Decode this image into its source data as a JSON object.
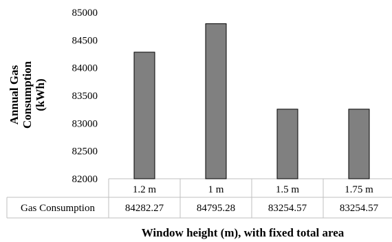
{
  "chart_data": {
    "type": "bar",
    "categories": [
      "1.2 m",
      "1 m",
      "1.5 m",
      "1.75 m"
    ],
    "series": [
      {
        "name": "Gas Consumption",
        "values": [
          84282.27,
          84795.28,
          83254.57,
          83254.57
        ]
      }
    ],
    "value_labels": [
      "84282.27",
      "84795.28",
      "83254.57",
      "83254.57"
    ],
    "ylabel": "Annual Gas Consumption (kWh)",
    "ylabel_lines": [
      "Annual Gas",
      "Consumption",
      "(kWh)"
    ],
    "xlabel": "Window height (m), with fixed total area",
    "ylim": [
      82000,
      85000
    ],
    "yticks": [
      82000,
      82500,
      83000,
      83500,
      84000,
      84500,
      85000
    ],
    "grid": false,
    "legend": "data-table",
    "bar_color": "#808080",
    "bar_edge_color": "#000000",
    "table_line_color": "#bfbfbf"
  }
}
